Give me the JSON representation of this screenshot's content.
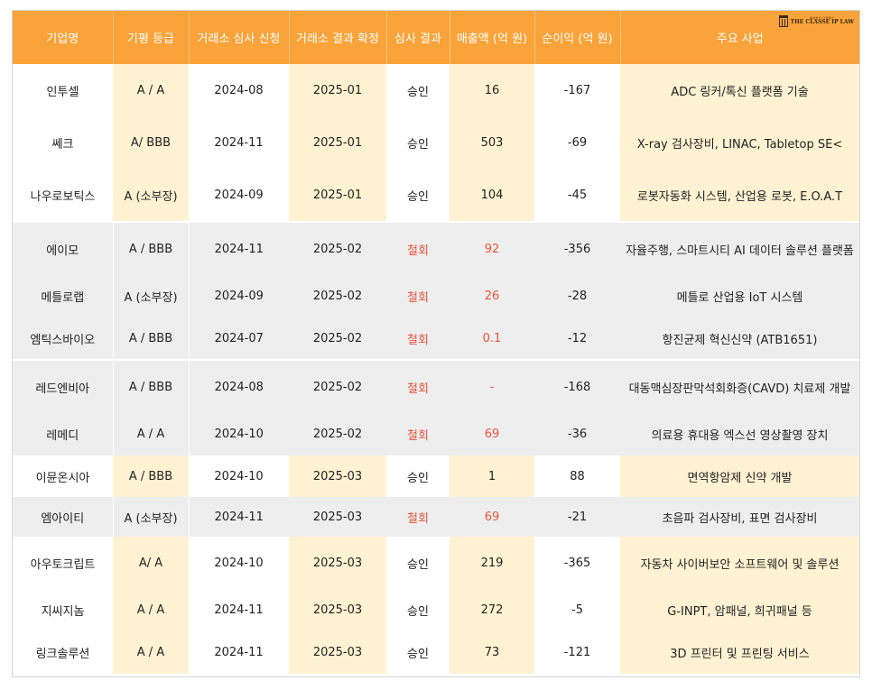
{
  "header": {
    "columns": [
      "기업명",
      "기평 등급",
      "거래소 심사 신청",
      "거래소 결과 확정",
      "심사 결과",
      "매출액 (억 원)",
      "순이익 (억 원)",
      "주요 사업"
    ],
    "logo": {
      "icon": "columns-logo-icon",
      "subtitle": "특허법인 더클래스",
      "title": "THE CLASSE IP LAW"
    }
  },
  "colors": {
    "header_bg": "#f9a33a",
    "highlight": "#fff2d2",
    "withdrawn_bg": "#eeeeee",
    "withdrawn_text": "#e8533a"
  },
  "rows": [
    {
      "company": "인투셀",
      "rating": "A / A",
      "apply": "2024-08",
      "decided": "2025-01",
      "result": "승인",
      "sales": "16",
      "profit": "-167",
      "business": "ADC 링커/톡신 플랫폼 기술"
    },
    {
      "company": "쎄크",
      "rating": "A/ BBB",
      "apply": "2024-11",
      "decided": "2025-01",
      "result": "승인",
      "sales": "503",
      "profit": "-69",
      "business": "X-ray 검사장비, LINAC, Tabletop SE<"
    },
    {
      "company": "나우로보틱스",
      "rating": "A (소부장)",
      "apply": "2024-09",
      "decided": "2025-01",
      "result": "승인",
      "sales": "104",
      "profit": "-45",
      "business": "로봇자동화 시스템, 산업용 로봇, E.O.A.T"
    },
    {
      "company": "에이모",
      "rating": "A / BBB",
      "apply": "2024-11",
      "decided": "2025-02",
      "result": "철회",
      "sales": "92",
      "profit": "-356",
      "business": "자율주행, 스마트시티 AI 데이터 솔루션 플랫폼"
    },
    {
      "company": "메틀로랩",
      "rating": "A (소부장)",
      "apply": "2024-09",
      "decided": "2025-02",
      "result": "철회",
      "sales": "26",
      "profit": "-28",
      "business": "메틀로 산업용 IoT 시스템"
    },
    {
      "company": "엠틱스바이오",
      "rating": "A / BBB",
      "apply": "2024-07",
      "decided": "2025-02",
      "result": "철회",
      "sales": "0.1",
      "profit": "-12",
      "business": "항진균제 혁신신약 (ATB1651)"
    },
    {
      "company": "레드엔비아",
      "rating": "A / BBB",
      "apply": "2024-08",
      "decided": "2025-02",
      "result": "철회",
      "sales": "-",
      "profit": "-168",
      "business": "대동맥심장판막석회화증(CAVD) 치료제 개발"
    },
    {
      "company": "레메디",
      "rating": "A / A",
      "apply": "2024-10",
      "decided": "2025-02",
      "result": "철회",
      "sales": "69",
      "profit": "-36",
      "business": "의료용 휴대용 엑스선 영상촬영 장치"
    },
    {
      "company": "이뮨온시아",
      "rating": "A / BBB",
      "apply": "2024-10",
      "decided": "2025-03",
      "result": "승인",
      "sales": "1",
      "profit": "88",
      "business": "면역항암제 신약 개발"
    },
    {
      "company": "엠아이티",
      "rating": "A (소부장)",
      "apply": "2024-11",
      "decided": "2025-03",
      "result": "철회",
      "sales": "69",
      "profit": "-21",
      "business": "초음파 검사장비, 표면 검사장비"
    },
    {
      "company": "아우토크립트",
      "rating": "A/ A",
      "apply": "2024-10",
      "decided": "2025-03",
      "result": "승인",
      "sales": "219",
      "profit": "-365",
      "business": "자동차 사이버보안 소프트웨어 및 솔루션"
    },
    {
      "company": "지씨지놈",
      "rating": "A / A",
      "apply": "2024-11",
      "decided": "2025-03",
      "result": "승인",
      "sales": "272",
      "profit": "-5",
      "business": "G-INPT, 암패널, 희귀패널 등"
    },
    {
      "company": "링크솔루션",
      "rating": "A / A",
      "apply": "2024-11",
      "decided": "2025-03",
      "result": "승인",
      "sales": "73",
      "profit": "-121",
      "business": "3D 프린터 및 프린팅 서비스"
    }
  ]
}
